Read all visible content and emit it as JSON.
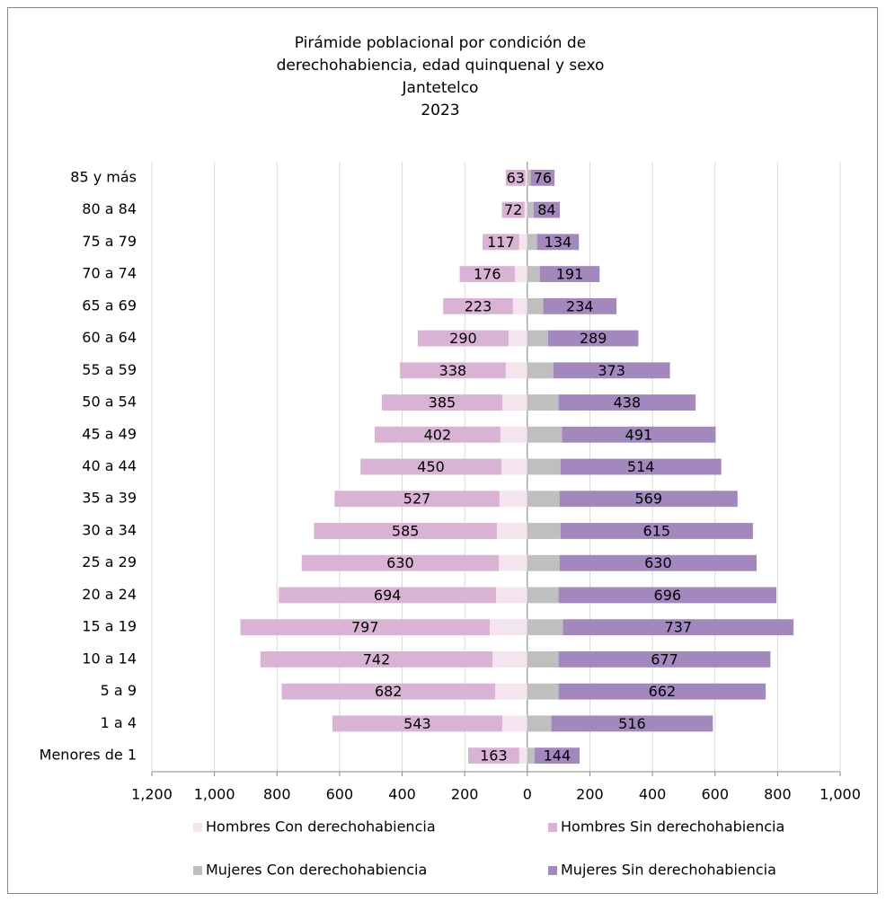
{
  "chart_data": {
    "type": "pyramid",
    "title": [
      "Pirámide poblacional por condición de",
      "derechohabiencia, edad quinquenal y sexo",
      "Jantetelco",
      "2023"
    ],
    "categories": [
      "Menores de 1",
      "1 a 4",
      "5 a 9",
      "10 a 14",
      "15 a 19",
      "20 a 24",
      "25 a 29",
      "30 a 34",
      "35 a 39",
      "40 a 44",
      "45 a 49",
      "50 a 54",
      "55 a 59",
      "60 a 64",
      "65 a 69",
      "70 a 74",
      "75 a 79",
      "80 a 84",
      "85 y más"
    ],
    "series": [
      {
        "name": "Hombres Con derechohabiencia",
        "color": "#f3e4ee",
        "values": [
          -26,
          -80,
          -103,
          -111,
          -120,
          -100,
          -91,
          -97,
          -89,
          -83,
          -86,
          -80,
          -69,
          -60,
          -46,
          -40,
          -26,
          -9,
          -6
        ]
      },
      {
        "name": "Hombres Sin derechohabiencia",
        "color": "#d9b3d3",
        "values": [
          -163,
          -543,
          -682,
          -742,
          -797,
          -694,
          -630,
          -585,
          -527,
          -450,
          -402,
          -385,
          -338,
          -290,
          -223,
          -176,
          -117,
          -72,
          -63
        ],
        "value_labels": [
          "163",
          "543",
          "682",
          "742",
          "797",
          "694",
          "630",
          "585",
          "527",
          "450",
          "402",
          "385",
          "338",
          "290",
          "223",
          "176",
          "117",
          "72",
          "63"
        ]
      },
      {
        "name": "Mujeres Con derechohabiencia",
        "color": "#bfbfbf",
        "values": [
          23,
          77,
          100,
          100,
          114,
          100,
          103,
          106,
          103,
          106,
          111,
          100,
          83,
          66,
          51,
          40,
          31,
          20,
          11
        ]
      },
      {
        "name": "Mujeres Sin derechohabiencia",
        "color": "#a288bd",
        "values": [
          144,
          516,
          662,
          677,
          737,
          696,
          630,
          615,
          569,
          514,
          491,
          438,
          373,
          289,
          234,
          191,
          134,
          84,
          76
        ]
      }
    ],
    "labeled_series": [
      1,
      3
    ],
    "xlim": [
      -1200,
      1000
    ],
    "xticks": [
      {
        "value": -1200,
        "label": "1,200"
      },
      {
        "value": -1000,
        "label": "1,000"
      },
      {
        "value": -800,
        "label": "800"
      },
      {
        "value": -600,
        "label": "600"
      },
      {
        "value": -400,
        "label": "400"
      },
      {
        "value": -200,
        "label": "200"
      },
      0,
      200,
      400,
      600,
      800,
      {
        "value": 1000,
        "label": "1,000"
      }
    ],
    "grid": true
  }
}
